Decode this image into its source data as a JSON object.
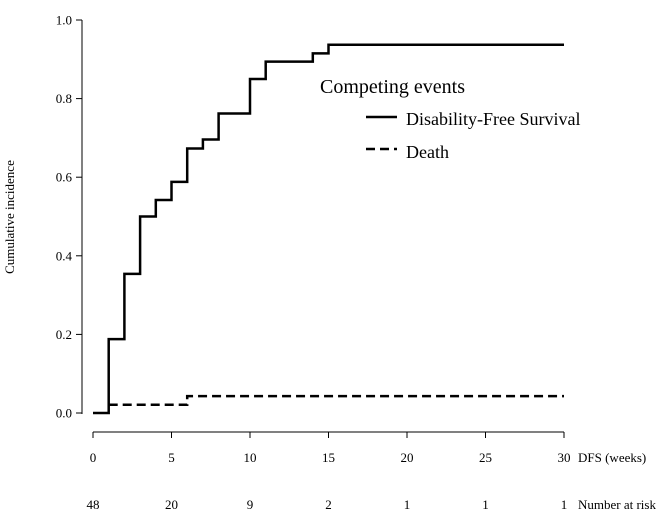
{
  "chart_data": {
    "type": "line",
    "title": "",
    "xlabel": "DFS (weeks)",
    "ylabel": "Cumulative incidence",
    "xlim": [
      0,
      30
    ],
    "ylim": [
      0,
      1.0
    ],
    "x_ticks": [
      0,
      5,
      10,
      15,
      20,
      25,
      30
    ],
    "x_tick_labels": [
      "0",
      "5",
      "10",
      "15",
      "20",
      "25",
      "30"
    ],
    "y_ticks": [
      0,
      0.2,
      0.4,
      0.6,
      0.8,
      1.0
    ],
    "y_tick_labels": [
      "0.0",
      "0.2",
      "0.4",
      "0.6",
      "0.8",
      "1.0"
    ],
    "grid": false,
    "legend": {
      "title": "Competing events",
      "placement": "top-right",
      "entries": [
        {
          "label": "Disability-Free Survival",
          "style": "solid"
        },
        {
          "label": "Death",
          "style": "dashed"
        }
      ]
    },
    "series": [
      {
        "name": "Disability-Free Survival",
        "style": "solid",
        "step": true,
        "points": [
          [
            0,
            0
          ],
          [
            1,
            0
          ],
          [
            1,
            0.188
          ],
          [
            2,
            0.188
          ],
          [
            2,
            0.354
          ],
          [
            3,
            0.354
          ],
          [
            3,
            0.5
          ],
          [
            4,
            0.5
          ],
          [
            4,
            0.542
          ],
          [
            5,
            0.542
          ],
          [
            5,
            0.588
          ],
          [
            6,
            0.588
          ],
          [
            6,
            0.673
          ],
          [
            7,
            0.673
          ],
          [
            7,
            0.696
          ],
          [
            8,
            0.696
          ],
          [
            8,
            0.762
          ],
          [
            10,
            0.762
          ],
          [
            10,
            0.85
          ],
          [
            11,
            0.85
          ],
          [
            11,
            0.894
          ],
          [
            14,
            0.894
          ],
          [
            14,
            0.915
          ],
          [
            15,
            0.915
          ],
          [
            15,
            0.937
          ],
          [
            30,
            0.937
          ]
        ]
      },
      {
        "name": "Death",
        "style": "dashed",
        "step": true,
        "points": [
          [
            1,
            0.021
          ],
          [
            6,
            0.021
          ],
          [
            6,
            0.043
          ],
          [
            30,
            0.043
          ]
        ]
      }
    ],
    "risk_table": {
      "label": "Number at risk",
      "times": [
        0,
        5,
        10,
        15,
        20,
        25,
        30
      ],
      "values": [
        "48",
        "20",
        "9",
        "2",
        "1",
        "1",
        "1"
      ]
    }
  }
}
